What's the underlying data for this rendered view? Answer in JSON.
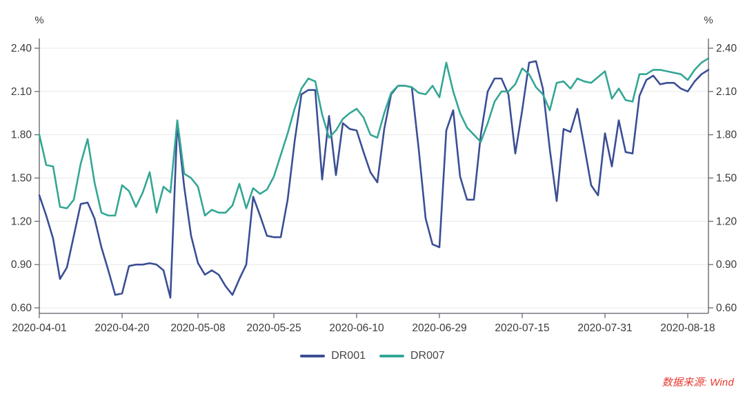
{
  "chart_data": {
    "type": "line",
    "title": "",
    "unit_left": "%",
    "unit_right": "%",
    "ylim": [
      0.6,
      2.4
    ],
    "y_ticks": [
      0.6,
      0.9,
      1.2,
      1.5,
      1.8,
      2.1,
      2.4
    ],
    "y_tick_sides": "both",
    "grid": true,
    "legend_position": "bottom-center",
    "x_tick_labels": [
      "2020-04-01",
      "2020-04-20",
      "2020-05-08",
      "2020-05-25",
      "2020-06-10",
      "2020-06-29",
      "2020-07-15",
      "2020-07-31",
      "2020-08-18"
    ],
    "x_tick_indices": [
      0,
      12,
      23,
      34,
      46,
      58,
      70,
      82,
      94
    ],
    "series": [
      {
        "name": "DR001",
        "color": "#3A4E94",
        "values": [
          1.38,
          1.24,
          1.08,
          0.8,
          0.88,
          1.1,
          1.32,
          1.33,
          1.22,
          1.02,
          0.86,
          0.69,
          0.7,
          0.89,
          0.9,
          0.9,
          0.91,
          0.9,
          0.86,
          0.67,
          1.88,
          1.44,
          1.1,
          0.91,
          0.83,
          0.86,
          0.83,
          0.75,
          0.69,
          0.8,
          0.9,
          1.37,
          1.24,
          1.1,
          1.09,
          1.09,
          1.35,
          1.75,
          2.08,
          2.11,
          2.11,
          1.49,
          1.93,
          1.52,
          1.88,
          1.84,
          1.83,
          1.68,
          1.54,
          1.47,
          1.84,
          2.08,
          2.14,
          2.14,
          2.13,
          1.7,
          1.22,
          1.04,
          1.02,
          1.83,
          1.97,
          1.51,
          1.35,
          1.35,
          1.8,
          2.1,
          2.19,
          2.19,
          2.08,
          1.67,
          1.97,
          2.3,
          2.31,
          2.12,
          1.7,
          1.34,
          1.84,
          1.82,
          1.98,
          1.72,
          1.45,
          1.38,
          1.81,
          1.58,
          1.9,
          1.68,
          1.67,
          2.07,
          2.18,
          2.21,
          2.15,
          2.16,
          2.16,
          2.12,
          2.1,
          2.17,
          2.22,
          2.25
        ]
      },
      {
        "name": "DR007",
        "color": "#33A694",
        "values": [
          1.8,
          1.59,
          1.58,
          1.3,
          1.29,
          1.35,
          1.6,
          1.77,
          1.47,
          1.26,
          1.24,
          1.24,
          1.45,
          1.41,
          1.3,
          1.4,
          1.54,
          1.26,
          1.44,
          1.4,
          1.9,
          1.53,
          1.5,
          1.44,
          1.24,
          1.28,
          1.26,
          1.26,
          1.31,
          1.46,
          1.29,
          1.43,
          1.39,
          1.42,
          1.51,
          1.66,
          1.81,
          1.98,
          2.12,
          2.19,
          2.17,
          1.94,
          1.78,
          1.83,
          1.91,
          1.95,
          1.98,
          1.92,
          1.8,
          1.78,
          1.95,
          2.09,
          2.14,
          2.14,
          2.13,
          2.09,
          2.08,
          2.14,
          2.06,
          2.3,
          2.1,
          1.95,
          1.85,
          1.8,
          1.75,
          1.88,
          2.03,
          2.1,
          2.1,
          2.15,
          2.26,
          2.22,
          2.13,
          2.08,
          1.97,
          2.16,
          2.17,
          2.12,
          2.19,
          2.17,
          2.16,
          2.2,
          2.24,
          2.05,
          2.12,
          2.04,
          2.03,
          2.22,
          2.22,
          2.25,
          2.25,
          2.24,
          2.23,
          2.22,
          2.18,
          2.25,
          2.3,
          2.33
        ]
      }
    ]
  },
  "source_note": "数据来源: Wind",
  "colors": {
    "dr001_line": "#3A4E94",
    "dr007_line": "#33A694",
    "axis": "#5B5F66",
    "grid": "#E8E8E8",
    "tick_label": "#3A3A3A",
    "legend_text": "#454545",
    "source_text": "#E83A2E",
    "background": "#FFFFFF"
  }
}
